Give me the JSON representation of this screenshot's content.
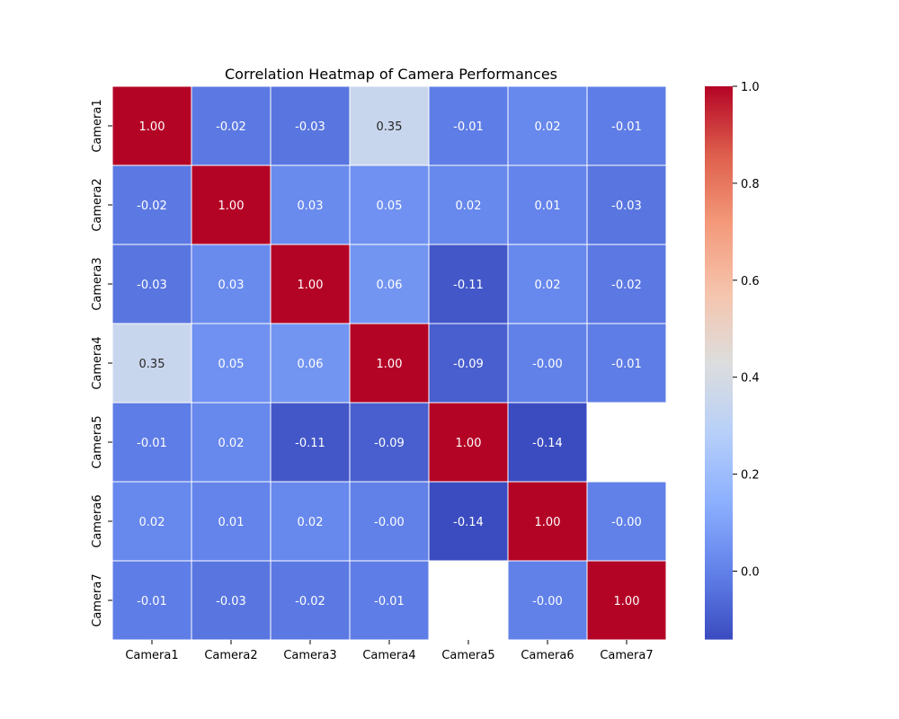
{
  "chart_data": {
    "type": "heatmap",
    "title": "Correlation Heatmap of Camera Performances",
    "xlabel": "",
    "ylabel": "",
    "x_categories": [
      "Camera1",
      "Camera2",
      "Camera3",
      "Camera4",
      "Camera5",
      "Camera6",
      "Camera7"
    ],
    "y_categories": [
      "Camera1",
      "Camera2",
      "Camera3",
      "Camera4",
      "Camera5",
      "Camera6",
      "Camera7"
    ],
    "values": [
      [
        1.0,
        -0.02,
        -0.03,
        0.35,
        -0.01,
        0.02,
        -0.01
      ],
      [
        -0.02,
        1.0,
        0.03,
        0.05,
        0.02,
        0.01,
        -0.03
      ],
      [
        -0.03,
        0.03,
        1.0,
        0.06,
        -0.11,
        0.02,
        -0.02
      ],
      [
        0.35,
        0.05,
        0.06,
        1.0,
        -0.09,
        -0.0,
        -0.01
      ],
      [
        -0.01,
        0.02,
        -0.11,
        -0.09,
        1.0,
        -0.14,
        null
      ],
      [
        0.02,
        0.01,
        0.02,
        -0.0,
        -0.14,
        1.0,
        -0.0
      ],
      [
        -0.01,
        -0.03,
        -0.02,
        -0.01,
        null,
        -0.0,
        1.0
      ]
    ],
    "value_labels": [
      [
        "1.00",
        "-0.02",
        "-0.03",
        "0.35",
        "-0.01",
        "0.02",
        "-0.01"
      ],
      [
        "-0.02",
        "1.00",
        "0.03",
        "0.05",
        "0.02",
        "0.01",
        "-0.03"
      ],
      [
        "-0.03",
        "0.03",
        "1.00",
        "0.06",
        "-0.11",
        "0.02",
        "-0.02"
      ],
      [
        "0.35",
        "0.05",
        "0.06",
        "1.00",
        "-0.09",
        "-0.00",
        "-0.01"
      ],
      [
        "-0.01",
        "0.02",
        "-0.11",
        "-0.09",
        "1.00",
        "-0.14",
        ""
      ],
      [
        "0.02",
        "0.01",
        "0.02",
        "-0.00",
        "-0.14",
        "1.00",
        "-0.00"
      ],
      [
        "-0.01",
        "-0.03",
        "-0.02",
        "-0.01",
        "",
        "-0.00",
        "1.00"
      ]
    ],
    "colormap": "coolwarm",
    "colorbar": {
      "min": -0.14,
      "max": 1.0,
      "ticks": [
        0.0,
        0.2,
        0.4,
        0.6,
        0.8,
        1.0
      ],
      "tick_labels": [
        "0.0",
        "0.2",
        "0.4",
        "0.6",
        "0.8",
        "1.0"
      ]
    },
    "grid": true
  }
}
